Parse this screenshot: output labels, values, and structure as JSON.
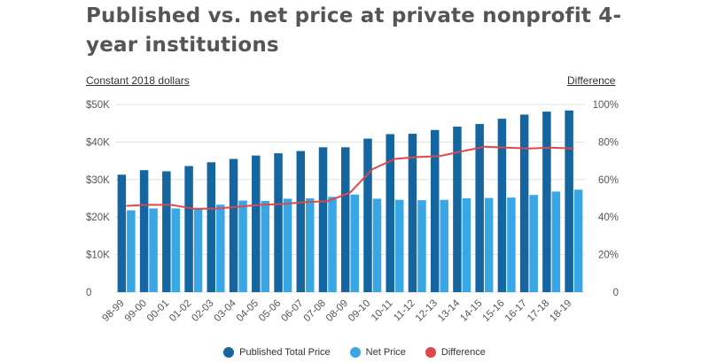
{
  "title": "Published vs. net price at private nonprofit 4-year institutions",
  "left_axis_title": "Constant 2018 dollars",
  "right_axis_title": "Difference",
  "colors": {
    "published": "#1565a0",
    "net": "#39a7e6",
    "difference": "#e0474c",
    "grid": "#e0e0e0"
  },
  "chart_data": {
    "type": "bar",
    "categories": [
      "98-99",
      "99-00",
      "00-01",
      "01-02",
      "02-03",
      "03-04",
      "04-05",
      "05-06",
      "06-07",
      "07-08",
      "08-09",
      "09-10",
      "10-11",
      "11-12",
      "12-13",
      "13-14",
      "14-15",
      "15-16",
      "16-17",
      "17-18",
      "18-19"
    ],
    "series": [
      {
        "name": "Published Total Price",
        "type": "bar",
        "axis": "left",
        "values": [
          31300,
          32500,
          32200,
          33600,
          34600,
          35500,
          36400,
          37000,
          37600,
          38600,
          38600,
          40900,
          42100,
          42200,
          43200,
          44100,
          44800,
          46200,
          47300,
          48100,
          48400
        ]
      },
      {
        "name": "Net Price",
        "type": "bar",
        "axis": "left",
        "values": [
          21800,
          22300,
          22300,
          22300,
          23300,
          24400,
          24300,
          24900,
          25000,
          25400,
          26000,
          24900,
          24600,
          24500,
          24600,
          25000,
          25100,
          25200,
          25900,
          26800,
          27300
        ]
      },
      {
        "name": "Difference",
        "type": "line",
        "axis": "right",
        "values": [
          46,
          46.5,
          46.5,
          44.5,
          44.5,
          45.5,
          46.5,
          47,
          48,
          48.5,
          53,
          65.5,
          71,
          72,
          72.5,
          75,
          77.5,
          77,
          76.5,
          77,
          76.5
        ]
      }
    ],
    "y_left": {
      "min": 0,
      "max": 50000,
      "ticks": [
        "0",
        "$10K",
        "$20K",
        "$30K",
        "$40K",
        "$50K"
      ]
    },
    "y_right": {
      "min": 0,
      "max": 100,
      "ticks": [
        "0",
        "20%",
        "40%",
        "60%",
        "80%",
        "100%"
      ]
    },
    "grid": true,
    "legend_position": "bottom-center"
  }
}
